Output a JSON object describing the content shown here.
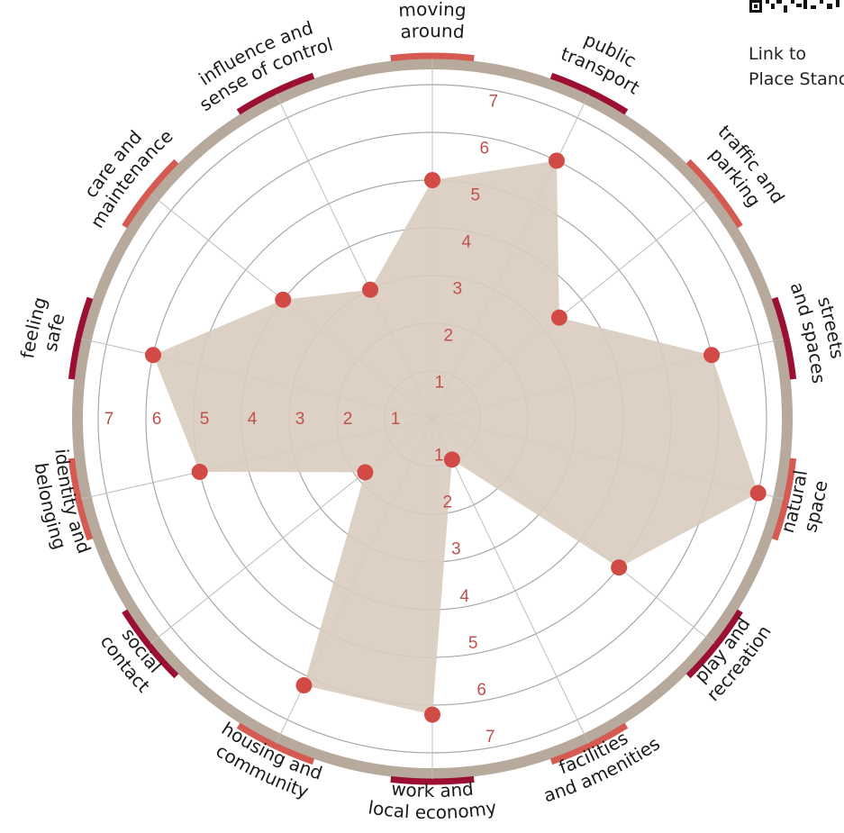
{
  "qr": {
    "icon": "qr-code-icon"
  },
  "side_link": {
    "line1": "Link to",
    "line2": "Place Stanc"
  },
  "colors": {
    "polygon_fill": "#d9ccbf",
    "point": "#d24a45",
    "ring": "#b7a99c",
    "accent_light": "#d45a52",
    "accent_dark": "#9b0f32",
    "grid": "#a8a8a8",
    "scale_text": "#c0504d"
  },
  "chart_data": {
    "type": "radar",
    "scale_max": 7,
    "scale_ticks": [
      1,
      2,
      3,
      4,
      5,
      6,
      7
    ],
    "categories": [
      {
        "lines": [
          "moving",
          "around"
        ],
        "value": 5,
        "accent": "light"
      },
      {
        "lines": [
          "public",
          "transport"
        ],
        "value": 6,
        "accent": "dark"
      },
      {
        "lines": [
          "traffic and",
          "parking"
        ],
        "value": 3.4,
        "accent": "light"
      },
      {
        "lines": [
          "streets",
          "and spaces"
        ],
        "value": 6,
        "accent": "dark"
      },
      {
        "lines": [
          "natural",
          "space"
        ],
        "value": 7,
        "accent": "light"
      },
      {
        "lines": [
          "play and",
          "recreation"
        ],
        "value": 5,
        "accent": "dark"
      },
      {
        "lines": [
          "facilities",
          "and amenities"
        ],
        "value": 0.95,
        "accent": "light"
      },
      {
        "lines": [
          "work and",
          "local economy"
        ],
        "value": 6.2,
        "accent": "dark"
      },
      {
        "lines": [
          "housing and",
          "community"
        ],
        "value": 6.2,
        "accent": "light"
      },
      {
        "lines": [
          "social",
          "contact"
        ],
        "value": 1.8,
        "accent": "dark"
      },
      {
        "lines": [
          "identity and",
          "belonging"
        ],
        "value": 5,
        "accent": "light"
      },
      {
        "lines": [
          "feeling",
          "safe"
        ],
        "value": 6,
        "accent": "dark"
      },
      {
        "lines": [
          "care and",
          "maintenance"
        ],
        "value": 4,
        "accent": "light"
      },
      {
        "lines": [
          "influence and",
          "sense of control"
        ],
        "value": 3,
        "accent": "dark"
      }
    ]
  }
}
